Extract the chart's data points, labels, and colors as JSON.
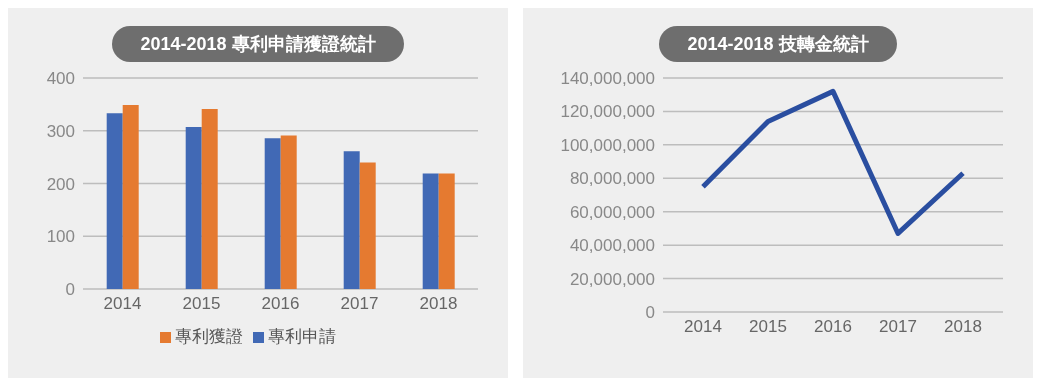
{
  "chart_data": [
    {
      "type": "bar",
      "title": "2014-2018 專利申請獲證統計",
      "categories": [
        "2014",
        "2015",
        "2016",
        "2017",
        "2018"
      ],
      "series": [
        {
          "name": "專利申請",
          "color": "#4169b5",
          "values": [
            333,
            307,
            286,
            261,
            219
          ]
        },
        {
          "name": "專利獲證",
          "color": "#e57a30",
          "values": [
            349,
            341,
            291,
            240,
            219
          ]
        }
      ],
      "ylim": [
        0,
        400
      ],
      "yticks": [
        0,
        100,
        200,
        300,
        400
      ],
      "grid": "y",
      "legend": "bottom"
    },
    {
      "type": "line",
      "title": "2014-2018 技轉金統計",
      "categories": [
        "2014",
        "2015",
        "2016",
        "2017",
        "2018"
      ],
      "series": [
        {
          "color": "#2a4ea0",
          "values": [
            75000000,
            114000000,
            132000000,
            47000000,
            83000000
          ]
        }
      ],
      "ylim": [
        0,
        140000000
      ],
      "yticks": [
        0,
        {
          "value": 20000000,
          "label": "20,000,000"
        },
        {
          "value": 40000000,
          "label": "40,000,000"
        },
        {
          "value": 60000000,
          "label": "60,000,000"
        },
        {
          "value": 80000000,
          "label": "80,000,000"
        },
        {
          "value": 100000000,
          "label": "100,000,000"
        },
        {
          "value": 120000000,
          "label": "120,000,000"
        },
        {
          "value": 140000000,
          "label": "140,000,000"
        }
      ],
      "grid": "y",
      "marker": "none"
    }
  ]
}
